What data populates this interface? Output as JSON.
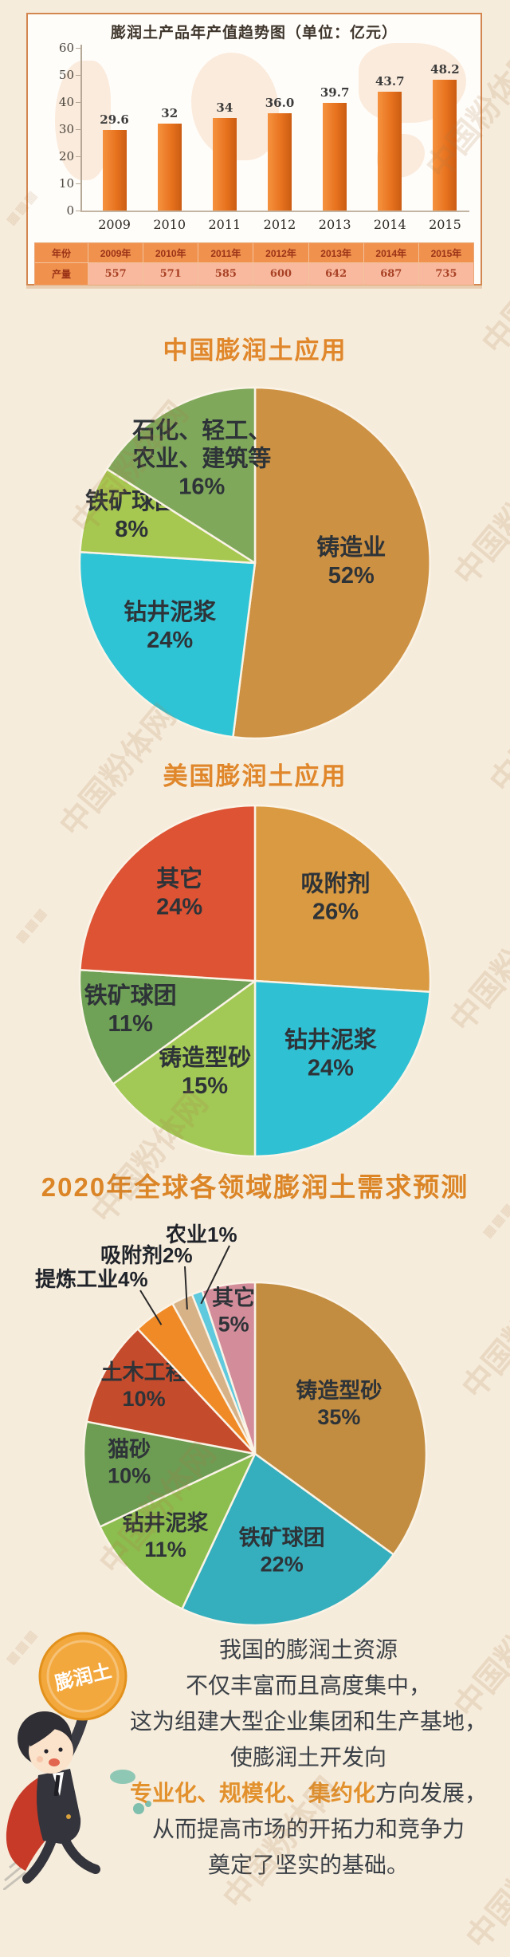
{
  "watermark": {
    "text": "中国粉体网",
    "mosaic": "▦▦▦"
  },
  "chart_data": [
    {
      "type": "bar",
      "title": "膨润土产品年产值趋势图（单位：亿元）",
      "categories": [
        "2009",
        "2010",
        "2011",
        "2012",
        "2013",
        "2014",
        "2015"
      ],
      "values": [
        29.6,
        32,
        34,
        36,
        39.7,
        43.7,
        48.2
      ],
      "value_labels": [
        "29.6",
        "32",
        "34",
        "36.0",
        "39.7",
        "43.7",
        "48.2"
      ],
      "ylim": [
        0,
        60
      ],
      "yticks": [
        0,
        10,
        20,
        30,
        40,
        50,
        60
      ],
      "bar_color": "#e8731f",
      "legend_position": "none",
      "grid": false,
      "table": {
        "year_header": "年份",
        "output_header": "产量",
        "years": [
          "2009年",
          "2010年",
          "2011年",
          "2012年",
          "2013年",
          "2014年",
          "2015年"
        ],
        "outputs": [
          "557",
          "571",
          "585",
          "600",
          "642",
          "687",
          "735"
        ]
      }
    },
    {
      "type": "pie",
      "title": "中国膨润土应用",
      "slices": [
        {
          "label": "铸造业",
          "value": 52,
          "color": "#cd9143"
        },
        {
          "label": "钻井泥浆",
          "value": 24,
          "color": "#2fc4d5"
        },
        {
          "label": "铁矿球团",
          "value": 8,
          "color": "#a6c850"
        },
        {
          "label": "石化、轻工、农业、建筑等",
          "value": 16,
          "color": "#7fa85b",
          "label_display": [
            "石化、轻工、",
            "农业、建筑等"
          ]
        }
      ]
    },
    {
      "type": "pie",
      "title": "美国膨润土应用",
      "slices": [
        {
          "label": "吸附剂",
          "value": 26,
          "color": "#d99a41"
        },
        {
          "label": "钻井泥浆",
          "value": 24,
          "color": "#2fc0d3"
        },
        {
          "label": "铸造型砂",
          "value": 15,
          "color": "#a2c855"
        },
        {
          "label": "铁矿球团",
          "value": 11,
          "color": "#6fa156"
        },
        {
          "label": "其它",
          "value": 24,
          "color": "#dd5334"
        }
      ]
    },
    {
      "type": "pie",
      "title": "2020年全球各领域膨润土需求预测",
      "slices": [
        {
          "label": "铸造型砂",
          "value": 35,
          "color": "#c28d41"
        },
        {
          "label": "铁矿球团",
          "value": 22,
          "color": "#35aebd"
        },
        {
          "label": "钻井泥浆",
          "value": 11,
          "color": "#8cbd4f"
        },
        {
          "label": "猫砂",
          "value": 10,
          "color": "#6d9c53"
        },
        {
          "label": "土木工程",
          "value": 10,
          "color": "#c44b2c"
        },
        {
          "label": "提炼工业",
          "value": 4,
          "color": "#f08a26",
          "callout": true
        },
        {
          "label": "吸附剂",
          "value": 2,
          "color": "#d8b287",
          "callout": true
        },
        {
          "label": "农业",
          "value": 1,
          "color": "#5fc9dd",
          "callout": true
        },
        {
          "label": "其它",
          "value": 5,
          "color": "#d38d9a"
        }
      ]
    }
  ],
  "footer": {
    "coin_label": "膨润土",
    "lines": [
      [
        {
          "t": "我国的膨润土资源"
        }
      ],
      [
        {
          "t": "不仅丰富而且高度集中，"
        }
      ],
      [
        {
          "t": "这为组建大型企业集团和生产基地，"
        }
      ],
      [
        {
          "t": "使膨润土开发向"
        }
      ],
      [
        {
          "t": "专业化、规模化、集约化",
          "h": true
        },
        {
          "t": "方向发展，"
        }
      ],
      [
        {
          "t": "从而提高市场的开拓力和竞争力"
        }
      ],
      [
        {
          "t": "奠定了坚实的基础。"
        }
      ]
    ]
  },
  "colors": {
    "background": "#f6ecdc",
    "accent_orange": "#e0872b",
    "panel_border": "#d3874f",
    "highlight": "#e2912d",
    "table_header_bg": "#f0914e",
    "table_cell_bg": "#f8b99e"
  }
}
